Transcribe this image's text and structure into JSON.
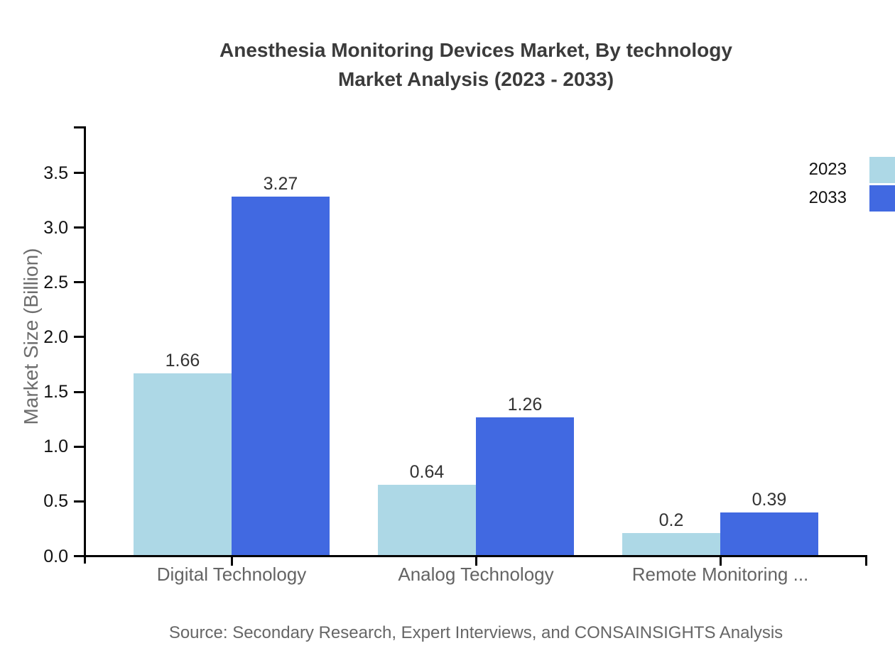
{
  "title": {
    "line1": "Anesthesia Monitoring Devices Market, By technology",
    "line2": "Market Analysis (2023 - 2033)"
  },
  "source": "Source: Secondary Research, Expert Interviews, and CONSAINSIGHTS Analysis",
  "chart_data": {
    "type": "bar",
    "title": "Anesthesia Monitoring Devices Market, By technology Market Analysis (2023 - 2033)",
    "categories": [
      "Digital Technology",
      "Analog Technology",
      "Remote Monitoring ..."
    ],
    "series": [
      {
        "name": "2023",
        "color": "#ADD8E6",
        "values": [
          1.66,
          0.64,
          0.2
        ],
        "labels": [
          "1.66",
          "0.64",
          "0.2"
        ]
      },
      {
        "name": "2033",
        "color": "#4169E1",
        "values": [
          3.27,
          1.26,
          0.39
        ],
        "labels": [
          "3.27",
          "1.26",
          "0.39"
        ]
      }
    ],
    "xlabel": "",
    "ylabel": "Market Size (Billion)",
    "ylim": [
      0,
      3.92
    ],
    "yticks": [
      0.0,
      0.5,
      1.0,
      1.5,
      2.0,
      2.5,
      3.0,
      3.5
    ],
    "ytick_labels": [
      "0.0",
      "0.5",
      "1.0",
      "1.5",
      "2.0",
      "2.5",
      "3.0",
      "3.5"
    ],
    "grid": false,
    "legend_position": "top-right"
  },
  "colors": {
    "axis": "#000000",
    "title_text": "#3b3b3b",
    "tick_text": "#111111",
    "category_text": "#646464",
    "value_text": "#333333",
    "muted_text": "#666666"
  }
}
